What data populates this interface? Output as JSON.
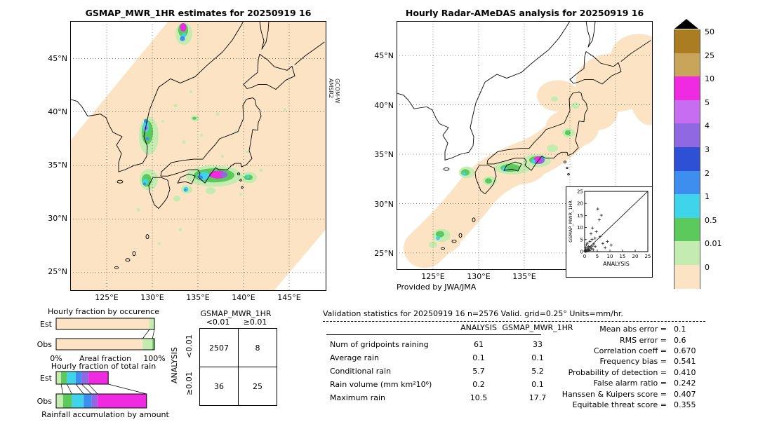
{
  "left_panel": {
    "title": "GSMAP_MWR_1HR estimates for 20250919 16",
    "satellite_line1": "GCOM-W",
    "satellite_line2": "AMSR2",
    "lat_ticks": [
      "45°N",
      "40°N",
      "35°N",
      "30°N",
      "25°N"
    ],
    "lon_ticks": [
      "125°E",
      "130°E",
      "135°E",
      "140°E",
      "145°E"
    ]
  },
  "right_panel": {
    "title": "Hourly Radar-AMeDAS analysis for 20250919 16",
    "credit": "Provided by JWA/JMA",
    "lat_ticks": [
      "45°N",
      "40°N",
      "35°N",
      "30°N",
      "25°N"
    ],
    "lon_ticks": [
      "125°E",
      "130°E",
      "135°E"
    ]
  },
  "colorbar": {
    "units": "mm/hr",
    "entries": [
      {
        "label": "50",
        "color": "#ab7d22"
      },
      {
        "label": "25",
        "color": "#c9a55c"
      },
      {
        "label": "10",
        "color": "#f02ae0"
      },
      {
        "label": "5",
        "color": "#c76df0"
      },
      {
        "label": "4",
        "color": "#8f68e2"
      },
      {
        "label": "3",
        "color": "#2d50d5"
      },
      {
        "label": "2",
        "color": "#3e8ef0"
      },
      {
        "label": "1",
        "color": "#40d4ea"
      },
      {
        "label": "0.5",
        "color": "#5bc95b"
      },
      {
        "label": "0.01",
        "color": "#c4ecb0"
      },
      {
        "label": "0",
        "color": "#fbe3c3"
      }
    ]
  },
  "contingency": {
    "title": "GSMAP_MWR_1HR",
    "col_headers": [
      "<0.01",
      "≥0.01"
    ],
    "row_headers": [
      "<0.01",
      "≥0.01"
    ],
    "side_label": "ANALYSIS",
    "values": [
      [
        "2507",
        "8"
      ],
      [
        "36",
        "25"
      ]
    ]
  },
  "validation": {
    "title": "Validation statistics for 20250919 16  n=2576 Valid. grid=0.25° Units=mm/hr.",
    "col1": "ANALYSIS",
    "col2": "GSMAP_MWR_1HR",
    "rows": [
      {
        "label": "Num of gridpoints raining",
        "a": "61",
        "g": "33"
      },
      {
        "label": "Average rain",
        "a": "0.1",
        "g": "0.1"
      },
      {
        "label": "Conditional rain",
        "a": "5.7",
        "g": "5.2"
      },
      {
        "label": "Rain volume (mm km²10⁶)",
        "a": "0.2",
        "g": "0.1"
      },
      {
        "label": "Maximum rain",
        "a": "10.5",
        "g": "17.7"
      }
    ],
    "metrics": [
      {
        "label": "Mean abs error =",
        "value": "0.1"
      },
      {
        "label": "RMS error =",
        "value": "0.6"
      },
      {
        "label": "Correlation coeff =",
        "value": "0.670"
      },
      {
        "label": "Frequency bias =",
        "value": "0.541"
      },
      {
        "label": "Probability of detection =",
        "value": "0.410"
      },
      {
        "label": "False alarm ratio =",
        "value": "0.242"
      },
      {
        "label": "Hanssen & Kuipers score =",
        "value": "0.407"
      },
      {
        "label": "Equitable threat score =",
        "value": "0.355"
      }
    ]
  },
  "chart_data": [
    {
      "type": "heatmap",
      "title": "GSMAP_MWR_1HR estimates for 20250919 16",
      "source_label": "GCOM-W AMSR2",
      "units": "mm/hr",
      "lon_ticks": [
        125,
        130,
        135,
        140,
        145
      ],
      "lat_ticks": [
        45,
        40,
        35,
        30,
        25
      ],
      "levels": [
        0,
        0.01,
        0.5,
        1,
        2,
        3,
        4,
        5,
        10,
        25,
        50
      ],
      "rain_areas": [
        {
          "lon": 133.4,
          "lat": 47.6,
          "peak_mm_hr": 10
        },
        {
          "lon": 129.6,
          "lat": 37.8,
          "peak_mm_hr": 3
        },
        {
          "lon": 129.3,
          "lat": 33.8,
          "peak_mm_hr": 2
        },
        {
          "lon": 136.5,
          "lat": 34.1,
          "peak_mm_hr": 17.7
        },
        {
          "lon": 140.5,
          "lat": 33.9,
          "peak_mm_hr": 1
        }
      ]
    },
    {
      "type": "heatmap",
      "title": "Hourly Radar-AMeDAS analysis for 20250919 16",
      "credit": "Provided by JWA/JMA",
      "units": "mm/hr",
      "lon_ticks": [
        125,
        130,
        135
      ],
      "lat_ticks": [
        45,
        40,
        35,
        30,
        25
      ],
      "levels": [
        0,
        0.01,
        0.5,
        1,
        2,
        3,
        4,
        5,
        10,
        25,
        50
      ],
      "rain_areas": [
        {
          "lon": 125.8,
          "lat": 26.8,
          "peak_mm_hr": 1
        },
        {
          "lon": 128.6,
          "lat": 33.2,
          "peak_mm_hr": 1
        },
        {
          "lon": 133.5,
          "lat": 33.6,
          "peak_mm_hr": 1
        },
        {
          "lon": 136.0,
          "lat": 34.4,
          "peak_mm_hr": 10.5
        },
        {
          "lon": 139.8,
          "lat": 37.2,
          "peak_mm_hr": 0.5
        }
      ]
    },
    {
      "type": "scatter",
      "xlabel": "ANALYSIS",
      "ylabel": "GSMAP_MWR_1HR",
      "xlim": [
        0,
        25
      ],
      "ylim": [
        0,
        25
      ],
      "x_ticks": [
        0,
        5,
        10,
        15,
        20,
        25
      ],
      "y_ticks": [
        0,
        5,
        10,
        15,
        20,
        25
      ],
      "identity_line": true,
      "points": [
        [
          0.1,
          0.1
        ],
        [
          0.2,
          0.4
        ],
        [
          0.3,
          0.1
        ],
        [
          0.5,
          0.3
        ],
        [
          0.6,
          0.8
        ],
        [
          0.8,
          0.2
        ],
        [
          1,
          0.5
        ],
        [
          1.2,
          1.5
        ],
        [
          1.5,
          0.7
        ],
        [
          1.8,
          1.1
        ],
        [
          2,
          0.4
        ],
        [
          2.3,
          1.9
        ],
        [
          2.7,
          1.2
        ],
        [
          3,
          2.3
        ],
        [
          3.4,
          0.8
        ],
        [
          0.4,
          1.6
        ],
        [
          0.7,
          2.8
        ],
        [
          1.1,
          3.5
        ],
        [
          1.6,
          2.2
        ],
        [
          2.1,
          4.2
        ],
        [
          2.9,
          5.1
        ],
        [
          3.6,
          3.2
        ],
        [
          4.2,
          2.1
        ],
        [
          4.6,
          8.3
        ],
        [
          5.2,
          17.7
        ],
        [
          5.8,
          13.2
        ],
        [
          6.6,
          15.1
        ],
        [
          3.1,
          9.8
        ],
        [
          7.2,
          3.4
        ],
        [
          8.1,
          1.6
        ],
        [
          9,
          4.2
        ],
        [
          10.5,
          2.7
        ],
        [
          6.1,
          6.2
        ],
        [
          4.1,
          5.6
        ],
        [
          2.5,
          7.4
        ]
      ]
    },
    {
      "type": "bar",
      "orientation": "horizontal",
      "title": "Hourly fraction by occurence",
      "axis_left": "0%",
      "axis_center": "Areal fraction",
      "axis_right": "100%",
      "x_range_pct": [
        0,
        100
      ],
      "rows": [
        {
          "label": "Est",
          "segments": [
            {
              "color": "#fbe3c3",
              "pct": 95
            },
            {
              "color": "#c4ecb0",
              "pct": 5
            }
          ]
        },
        {
          "label": "Obs",
          "segments": [
            {
              "color": "#fbe3c3",
              "pct": 88
            },
            {
              "color": "#c4ecb0",
              "pct": 10
            },
            {
              "color": "#5bc95b",
              "pct": 2
            }
          ]
        }
      ]
    },
    {
      "type": "bar",
      "orientation": "horizontal",
      "title": "Hourly fraction of total rain",
      "caption": "Rainfall accumulation by amount",
      "x_range_pct": [
        0,
        100
      ],
      "rows": [
        {
          "label": "Est",
          "segments": [
            {
              "color": "#c4ecb0",
              "pct": 5
            },
            {
              "color": "#5bc95b",
              "pct": 6
            },
            {
              "color": "#40d4ea",
              "pct": 9
            },
            {
              "color": "#3e8ef0",
              "pct": 6
            },
            {
              "color": "#8f68e2",
              "pct": 7
            },
            {
              "color": "#f02ae0",
              "pct": 20
            }
          ]
        },
        {
          "label": "Obs",
          "segments": [
            {
              "color": "#c4ecb0",
              "pct": 7
            },
            {
              "color": "#5bc95b",
              "pct": 9
            },
            {
              "color": "#40d4ea",
              "pct": 12
            },
            {
              "color": "#3e8ef0",
              "pct": 8
            },
            {
              "color": "#8f68e2",
              "pct": 6
            },
            {
              "color": "#f02ae0",
              "pct": 50
            }
          ]
        }
      ]
    },
    {
      "type": "table",
      "title": "GSMAP_MWR_1HR vs ANALYSIS contingency",
      "col_headers": [
        "<0.01",
        "≥0.01"
      ],
      "row_headers": [
        "<0.01",
        "≥0.01"
      ],
      "values": [
        [
          2507,
          8
        ],
        [
          36,
          25
        ]
      ]
    }
  ]
}
